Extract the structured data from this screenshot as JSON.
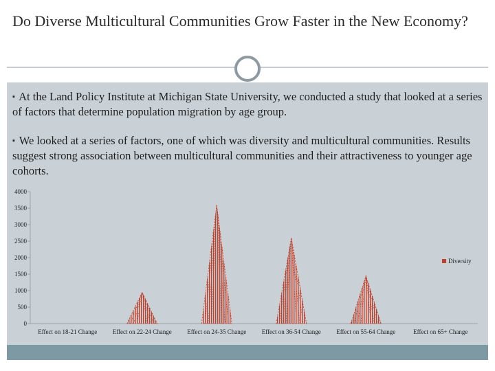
{
  "slide": {
    "title": "Do Diverse Multicultural Communities Grow Faster in the New Economy?",
    "bullets": [
      "At the Land Policy Institute at Michigan State University, we conducted a study that looked at a series of factors that determine population migration by age group.",
      "We looked at a series of factors, one of which was diversity and multicultural communities. Results suggest strong association between multicultural communities and their attractiveness to younger age cohorts."
    ]
  },
  "colors": {
    "series": "#c0402a",
    "content_bg": "#c9d1d7",
    "footer": "#7d99a3"
  },
  "chart_data": {
    "type": "bar",
    "categories": [
      "Effect on 18-21 Change",
      "Effect on 22-24 Change",
      "Effect on 24-35 Change",
      "Effect on 36-54 Change",
      "Effect on 55-64 Change",
      "Effect on 65+ Change"
    ],
    "series": [
      {
        "name": "Diversity",
        "values": [
          0,
          950,
          3600,
          2600,
          1450,
          0
        ]
      }
    ],
    "ylim": [
      0,
      4000
    ],
    "yticks": [
      "0",
      "500",
      "1000",
      "1500",
      "2000",
      "2500",
      "3000",
      "3500",
      "4000"
    ],
    "legend": "right",
    "grid": false
  }
}
